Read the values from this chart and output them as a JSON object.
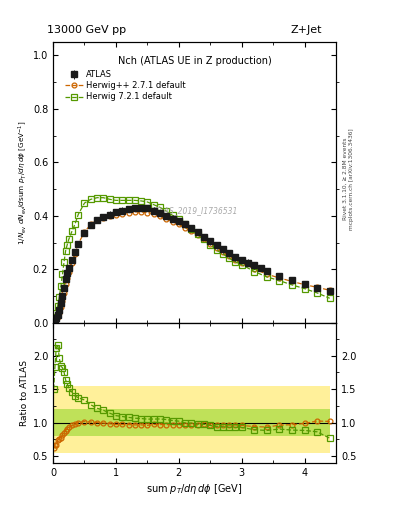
{
  "title_left": "13000 GeV pp",
  "title_right": "Z+Jet",
  "plot_title": "Nch (ATLAS UE in Z production)",
  "xlabel": "sum p_{T}/d\\eta d\\phi [GeV]",
  "ratio_ylabel": "Ratio to ATLAS",
  "watermark": "ATLAS_2019_I1736531",
  "right_label1": "Rivet 3.1.10, ≥ 2.8M events",
  "right_label2": "mcplots.cern.ch [arXiv:1306.3436]",
  "xlim": [
    0,
    4.5
  ],
  "ylim_main": [
    0,
    1.05
  ],
  "ylim_ratio": [
    0.39,
    2.49
  ],
  "atlas_x": [
    0.01,
    0.03,
    0.05,
    0.075,
    0.1,
    0.125,
    0.15,
    0.175,
    0.2,
    0.225,
    0.25,
    0.3,
    0.35,
    0.4,
    0.5,
    0.6,
    0.7,
    0.8,
    0.9,
    1.0,
    1.1,
    1.2,
    1.3,
    1.4,
    1.5,
    1.6,
    1.7,
    1.8,
    1.9,
    2.0,
    2.1,
    2.2,
    2.3,
    2.4,
    2.5,
    2.6,
    2.7,
    2.8,
    2.9,
    3.0,
    3.1,
    3.2,
    3.3,
    3.4,
    3.6,
    3.8,
    4.0,
    4.2,
    4.4
  ],
  "atlas_y": [
    0.008,
    0.012,
    0.018,
    0.03,
    0.05,
    0.075,
    0.1,
    0.13,
    0.165,
    0.185,
    0.205,
    0.235,
    0.265,
    0.295,
    0.335,
    0.365,
    0.385,
    0.395,
    0.405,
    0.415,
    0.42,
    0.425,
    0.43,
    0.43,
    0.43,
    0.42,
    0.41,
    0.4,
    0.39,
    0.38,
    0.37,
    0.355,
    0.34,
    0.32,
    0.305,
    0.29,
    0.275,
    0.26,
    0.245,
    0.235,
    0.225,
    0.215,
    0.205,
    0.195,
    0.175,
    0.16,
    0.145,
    0.13,
    0.12
  ],
  "atlas_yerr": [
    0.003,
    0.004,
    0.004,
    0.005,
    0.006,
    0.008,
    0.009,
    0.01,
    0.012,
    0.012,
    0.012,
    0.012,
    0.012,
    0.012,
    0.012,
    0.012,
    0.012,
    0.012,
    0.012,
    0.012,
    0.012,
    0.012,
    0.012,
    0.012,
    0.012,
    0.012,
    0.012,
    0.012,
    0.012,
    0.012,
    0.012,
    0.012,
    0.012,
    0.012,
    0.012,
    0.012,
    0.012,
    0.012,
    0.012,
    0.012,
    0.012,
    0.012,
    0.012,
    0.012,
    0.012,
    0.012,
    0.012,
    0.012,
    0.012
  ],
  "hpp_x": [
    0.01,
    0.03,
    0.05,
    0.075,
    0.1,
    0.125,
    0.15,
    0.175,
    0.2,
    0.225,
    0.25,
    0.3,
    0.35,
    0.4,
    0.5,
    0.6,
    0.7,
    0.8,
    0.9,
    1.0,
    1.1,
    1.2,
    1.3,
    1.4,
    1.5,
    1.6,
    1.7,
    1.8,
    1.9,
    2.0,
    2.1,
    2.2,
    2.3,
    2.4,
    2.5,
    2.6,
    2.7,
    2.8,
    2.9,
    3.0,
    3.2,
    3.4,
    3.6,
    3.8,
    4.0,
    4.2,
    4.4
  ],
  "hpp_y": [
    0.005,
    0.008,
    0.012,
    0.022,
    0.038,
    0.058,
    0.082,
    0.11,
    0.145,
    0.168,
    0.19,
    0.225,
    0.258,
    0.295,
    0.34,
    0.368,
    0.385,
    0.392,
    0.398,
    0.403,
    0.408,
    0.412,
    0.415,
    0.415,
    0.412,
    0.408,
    0.398,
    0.388,
    0.378,
    0.368,
    0.356,
    0.342,
    0.328,
    0.312,
    0.296,
    0.28,
    0.265,
    0.25,
    0.236,
    0.225,
    0.202,
    0.182,
    0.168,
    0.155,
    0.143,
    0.133,
    0.122
  ],
  "h72_x": [
    0.01,
    0.03,
    0.05,
    0.075,
    0.1,
    0.125,
    0.15,
    0.175,
    0.2,
    0.225,
    0.25,
    0.3,
    0.35,
    0.4,
    0.5,
    0.6,
    0.7,
    0.8,
    0.9,
    1.0,
    1.1,
    1.2,
    1.3,
    1.4,
    1.5,
    1.6,
    1.7,
    1.8,
    1.9,
    2.0,
    2.1,
    2.2,
    2.3,
    2.4,
    2.5,
    2.6,
    2.7,
    2.8,
    2.9,
    3.0,
    3.2,
    3.4,
    3.6,
    3.8,
    4.0,
    4.2,
    4.4
  ],
  "h72_y": [
    0.012,
    0.022,
    0.038,
    0.065,
    0.098,
    0.138,
    0.182,
    0.228,
    0.27,
    0.292,
    0.312,
    0.342,
    0.37,
    0.405,
    0.448,
    0.462,
    0.468,
    0.468,
    0.462,
    0.458,
    0.458,
    0.458,
    0.458,
    0.456,
    0.452,
    0.442,
    0.432,
    0.418,
    0.402,
    0.388,
    0.368,
    0.352,
    0.332,
    0.312,
    0.292,
    0.272,
    0.258,
    0.242,
    0.228,
    0.218,
    0.192,
    0.172,
    0.158,
    0.142,
    0.128,
    0.112,
    0.092
  ],
  "atlas_color": "#1a1a1a",
  "hpp_color": "#cc6600",
  "h72_color": "#559900",
  "band_yellow": "#ffee88",
  "band_green": "#aadd44",
  "ratio_band_yellow_lo": 0.55,
  "ratio_band_yellow_hi": 1.55,
  "ratio_band_green_lo": 0.8,
  "ratio_band_green_hi": 1.2
}
